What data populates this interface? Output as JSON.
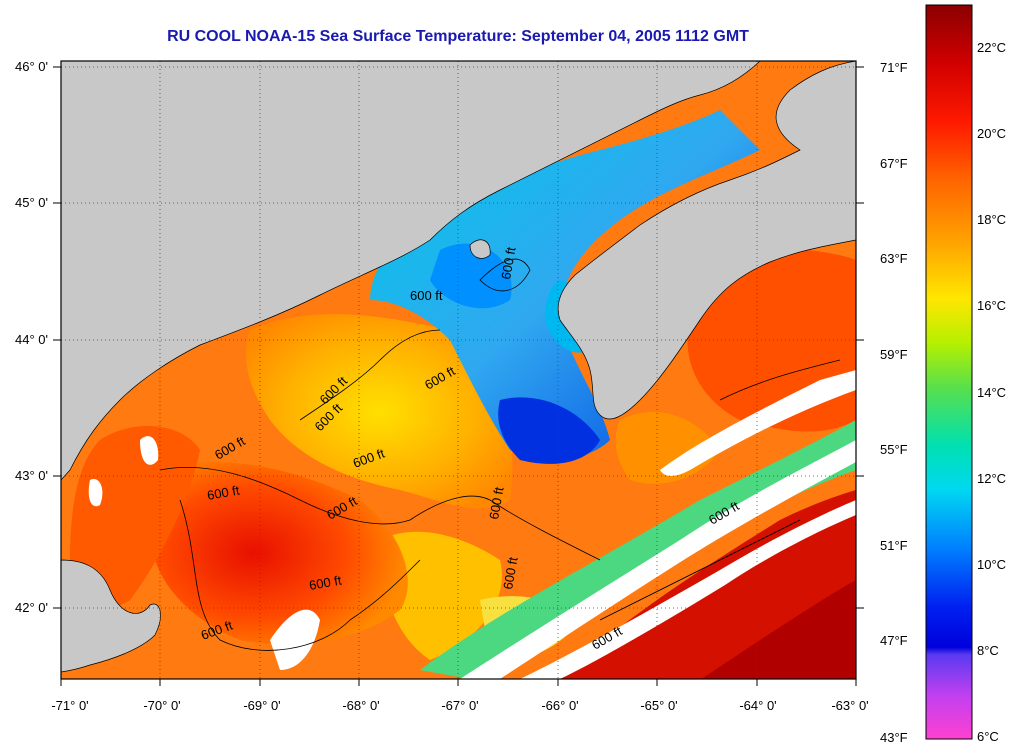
{
  "title": "RU COOL  NOAA-15  Sea Surface Temperature:  September 04, 2005 1112 GMT",
  "lat_labels": [
    "46° 0'",
    "45° 0'",
    "44° 0'",
    "43° 0'",
    "42° 0'"
  ],
  "lon_labels": [
    "-71° 0'",
    "-70° 0'",
    "-69° 0'",
    "-68° 0'",
    "-67° 0'",
    "-66° 0'",
    "-65° 0'",
    "-64° 0'",
    "-63° 0'"
  ],
  "fahrenheit_labels": [
    "71°F",
    "67°F",
    "63°F",
    "59°F",
    "55°F",
    "51°F",
    "47°F",
    "43°F"
  ],
  "celsius_labels": [
    "22°C",
    "20°C",
    "18°C",
    "16°C",
    "14°C",
    "12°C",
    "10°C",
    "8°C",
    "6°C"
  ],
  "contour_labels": [
    "600 ft",
    "600 ft",
    "600 ft",
    "600 ft",
    "600 ft",
    "600 ft",
    "600 ft",
    "600 ft",
    "600 ft",
    "600 ft",
    "600 ft",
    "600 ft",
    "600 ft",
    "600 ft",
    "600 ft"
  ],
  "colors": {
    "land": "#c8c8c8",
    "cloud": "#ffffff",
    "title": "#1a1ab0"
  }
}
